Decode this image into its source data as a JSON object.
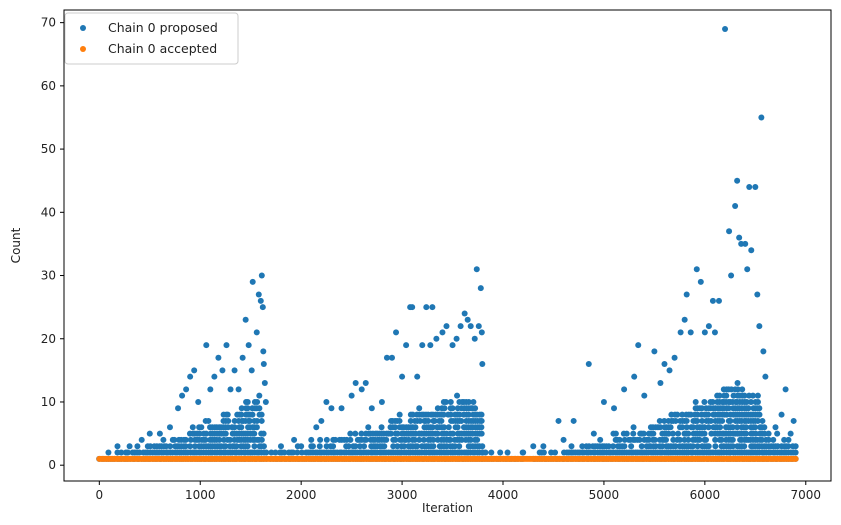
{
  "chart_data": {
    "type": "scatter",
    "title": "",
    "xlabel": "Iteration",
    "ylabel": "Count",
    "xlim": [
      -350,
      7250
    ],
    "ylim": [
      -2.5,
      72
    ],
    "xticks": [
      0,
      1000,
      2000,
      3000,
      4000,
      5000,
      6000,
      7000
    ],
    "yticks": [
      0,
      10,
      20,
      30,
      40,
      50,
      60,
      70
    ],
    "xtick_labels": [
      "0",
      "1000",
      "2000",
      "3000",
      "4000",
      "5000",
      "6000",
      "7000"
    ],
    "ytick_labels": [
      "0",
      "10",
      "20",
      "30",
      "40",
      "50",
      "60",
      "70"
    ],
    "grid": false,
    "legend_position": "top-left",
    "series": [
      {
        "name": "Chain 0 proposed",
        "color": "#1f77b4",
        "points": [
          [
            180,
            3
          ],
          [
            300,
            3
          ],
          [
            420,
            4
          ],
          [
            500,
            5
          ],
          [
            600,
            5
          ],
          [
            700,
            6
          ],
          [
            780,
            9
          ],
          [
            820,
            11
          ],
          [
            860,
            12
          ],
          [
            900,
            14
          ],
          [
            940,
            15
          ],
          [
            980,
            10
          ],
          [
            1060,
            19
          ],
          [
            1100,
            12
          ],
          [
            1140,
            14
          ],
          [
            1180,
            17
          ],
          [
            1220,
            15
          ],
          [
            1260,
            19
          ],
          [
            1300,
            12
          ],
          [
            1340,
            15
          ],
          [
            1380,
            12
          ],
          [
            1420,
            17
          ],
          [
            1450,
            23
          ],
          [
            1480,
            19
          ],
          [
            1510,
            15
          ],
          [
            1520,
            29
          ],
          [
            1560,
            21
          ],
          [
            1580,
            27
          ],
          [
            1600,
            26
          ],
          [
            1610,
            30
          ],
          [
            1620,
            25
          ],
          [
            1625,
            18
          ],
          [
            1630,
            16
          ],
          [
            1640,
            13
          ],
          [
            1650,
            10
          ],
          [
            1800,
            3
          ],
          [
            1930,
            4
          ],
          [
            2000,
            3
          ],
          [
            2100,
            4
          ],
          [
            2150,
            6
          ],
          [
            2200,
            7
          ],
          [
            2250,
            10
          ],
          [
            2300,
            9
          ],
          [
            2400,
            9
          ],
          [
            2500,
            11
          ],
          [
            2540,
            13
          ],
          [
            2600,
            12
          ],
          [
            2640,
            13
          ],
          [
            2700,
            9
          ],
          [
            2800,
            10
          ],
          [
            2850,
            17
          ],
          [
            2900,
            17
          ],
          [
            2940,
            21
          ],
          [
            3000,
            14
          ],
          [
            3040,
            19
          ],
          [
            3080,
            25
          ],
          [
            3100,
            25
          ],
          [
            3150,
            14
          ],
          [
            3200,
            19
          ],
          [
            3240,
            25
          ],
          [
            3280,
            19
          ],
          [
            3300,
            25
          ],
          [
            3340,
            20
          ],
          [
            3400,
            21
          ],
          [
            3440,
            22
          ],
          [
            3500,
            19
          ],
          [
            3540,
            20
          ],
          [
            3580,
            22
          ],
          [
            3620,
            24
          ],
          [
            3650,
            23
          ],
          [
            3680,
            22
          ],
          [
            3720,
            20
          ],
          [
            3740,
            31
          ],
          [
            3760,
            22
          ],
          [
            3780,
            28
          ],
          [
            3790,
            21
          ],
          [
            3795,
            16
          ],
          [
            4200,
            2
          ],
          [
            4300,
            3
          ],
          [
            4400,
            3
          ],
          [
            4550,
            7
          ],
          [
            4600,
            4
          ],
          [
            4700,
            7
          ],
          [
            4850,
            16
          ],
          [
            4900,
            5
          ],
          [
            5000,
            10
          ],
          [
            5100,
            9
          ],
          [
            5200,
            12
          ],
          [
            5300,
            14
          ],
          [
            5340,
            19
          ],
          [
            5400,
            11
          ],
          [
            5500,
            18
          ],
          [
            5560,
            13
          ],
          [
            5600,
            16
          ],
          [
            5650,
            15
          ],
          [
            5700,
            17
          ],
          [
            5760,
            21
          ],
          [
            5800,
            23
          ],
          [
            5820,
            27
          ],
          [
            5860,
            21
          ],
          [
            5920,
            31
          ],
          [
            5960,
            29
          ],
          [
            6000,
            21
          ],
          [
            6040,
            22
          ],
          [
            6080,
            26
          ],
          [
            6100,
            21
          ],
          [
            6140,
            26
          ],
          [
            6200,
            69
          ],
          [
            6240,
            37
          ],
          [
            6260,
            30
          ],
          [
            6300,
            41
          ],
          [
            6320,
            45
          ],
          [
            6340,
            36
          ],
          [
            6360,
            35
          ],
          [
            6400,
            35
          ],
          [
            6420,
            31
          ],
          [
            6440,
            44
          ],
          [
            6460,
            34
          ],
          [
            6500,
            44
          ],
          [
            6520,
            27
          ],
          [
            6540,
            22
          ],
          [
            6560,
            55
          ],
          [
            6580,
            18
          ],
          [
            6600,
            14
          ],
          [
            6700,
            6
          ],
          [
            6760,
            8
          ],
          [
            6800,
            12
          ],
          [
            6850,
            5
          ],
          [
            6880,
            7
          ],
          [
            6900,
            3
          ]
        ],
        "dense_band_segments": [
          [
            [
              0,
              1
            ],
            [
              400,
              2
            ],
            [
              800,
              4
            ],
            [
              1200,
              7
            ],
            [
              1600,
              10
            ],
            [
              1650,
              2
            ]
          ],
          [
            [
              1700,
              1
            ],
            [
              2000,
              2
            ],
            [
              2400,
              4
            ],
            [
              2800,
              6
            ],
            [
              3200,
              8
            ],
            [
              3600,
              10
            ],
            [
              3790,
              9
            ],
            [
              3795,
              2
            ]
          ],
          [
            [
              3800,
              1
            ],
            [
              4200,
              1
            ]
          ],
          [
            [
              4300,
              1
            ],
            [
              4700,
              2
            ],
            [
              5100,
              4
            ],
            [
              5500,
              6
            ],
            [
              5900,
              9
            ],
            [
              6300,
              12
            ],
            [
              6550,
              10
            ],
            [
              6600,
              4
            ],
            [
              6900,
              3
            ]
          ]
        ]
      },
      {
        "name": "Chain 0 accepted",
        "color": "#ff7f0e",
        "x_range": [
          0,
          6900
        ],
        "value": 1
      }
    ]
  }
}
